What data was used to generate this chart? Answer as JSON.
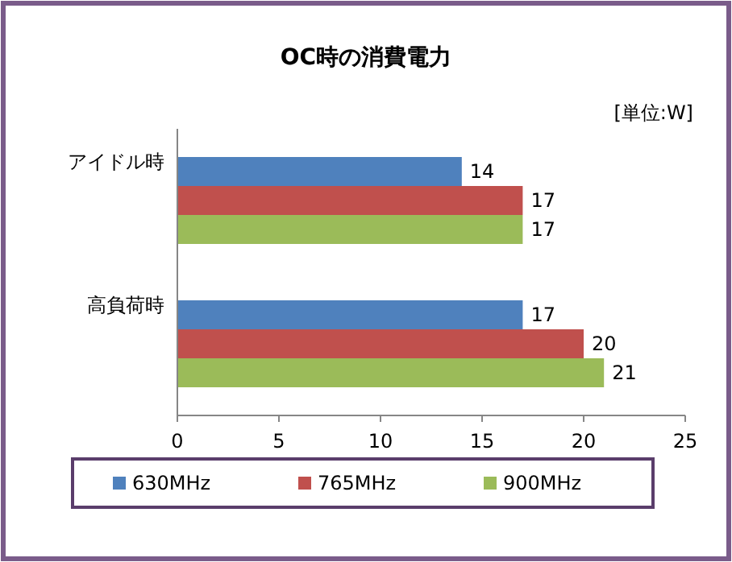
{
  "chart_data": {
    "type": "bar",
    "orientation": "horizontal",
    "title": "OC時の消費電力",
    "annotations": [
      "[単位:W]"
    ],
    "categories": [
      "アイドル時",
      "高負荷時"
    ],
    "series": [
      {
        "name": "630MHz",
        "color": "#4f81bd",
        "values": [
          14,
          17
        ]
      },
      {
        "name": "765MHz",
        "color": "#c0504d",
        "values": [
          17,
          20
        ]
      },
      {
        "name": "900MHz",
        "color": "#9bbb59",
        "values": [
          17,
          21
        ]
      }
    ],
    "xlim": [
      0,
      25
    ],
    "xticks": [
      0,
      5,
      10,
      15,
      20,
      25
    ],
    "data_labels": true,
    "legend": "bottom"
  }
}
